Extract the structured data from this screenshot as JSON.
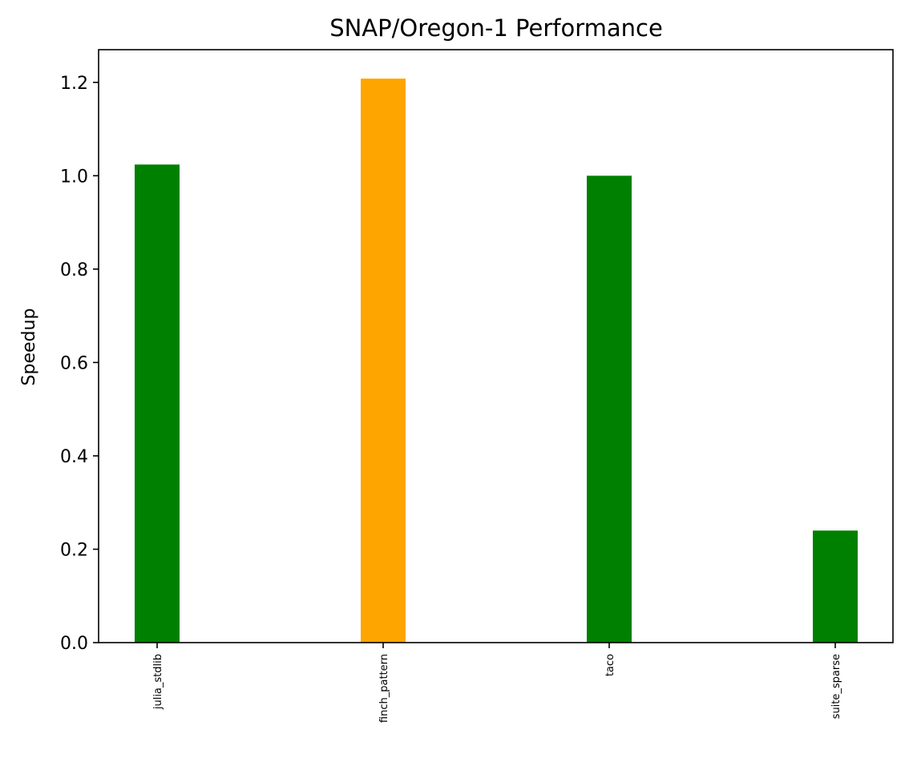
{
  "chart_data": {
    "type": "bar",
    "title": "SNAP/Oregon-1 Performance",
    "xlabel": "",
    "ylabel": "Speedup",
    "categories": [
      "julia_stdlib",
      "finch_pattern",
      "taco",
      "suite_sparse"
    ],
    "values": [
      1.024,
      1.208,
      1.0,
      0.24
    ],
    "bar_colors": [
      "#008000",
      "#ffa500",
      "#008000",
      "#008000"
    ],
    "ylim": [
      0,
      1.27
    ],
    "yticks": [
      "0.0",
      "0.2",
      "0.4",
      "0.6",
      "0.8",
      "1.0",
      "1.2"
    ],
    "grid": false,
    "legend": "none"
  }
}
